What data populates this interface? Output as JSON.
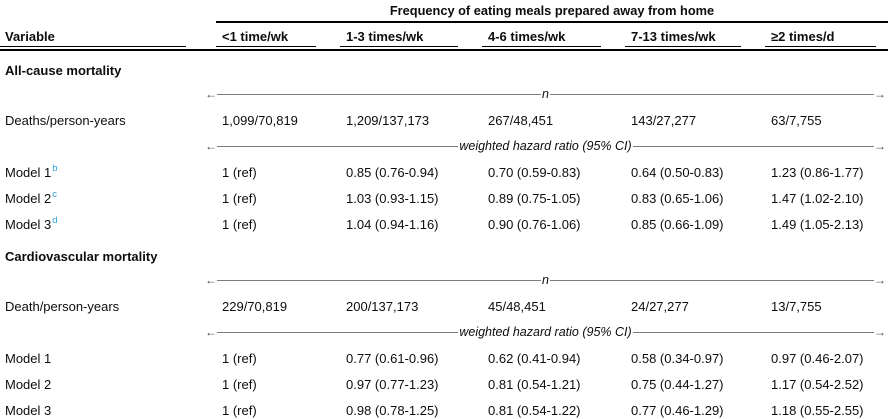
{
  "table": {
    "spanner": "Frequency of eating meals prepared away from home",
    "columns": [
      "Variable",
      "<1 time/wk",
      "1-3 times/wk",
      "4-6 times/wk",
      "7-13 times/wk",
      "≥2 times/d"
    ],
    "sections": [
      {
        "title": "All-cause mortality",
        "rows": [
          {
            "type": "arrow",
            "label": "n"
          },
          {
            "type": "data",
            "label": "Deaths/person-years",
            "sup": "",
            "values": [
              "1,099/70,819",
              "1,209/137,173",
              "267/48,451",
              "143/27,277",
              "63/7,755"
            ]
          },
          {
            "type": "arrow",
            "label": "weighted hazard ratio (95% CI)"
          },
          {
            "type": "data",
            "label": "Model 1",
            "sup": "b",
            "values": [
              "1 (ref)",
              "0.85 (0.76-0.94)",
              "0.70 (0.59-0.83)",
              "0.64 (0.50-0.83)",
              "1.23 (0.86-1.77)"
            ]
          },
          {
            "type": "data",
            "label": "Model 2",
            "sup": "c",
            "values": [
              "1 (ref)",
              "1.03 (0.93-1.15)",
              "0.89 (0.75-1.05)",
              "0.83 (0.65-1.06)",
              "1.47 (1.02-2.10)"
            ]
          },
          {
            "type": "data",
            "label": "Model 3",
            "sup": "d",
            "values": [
              "1 (ref)",
              "1.04 (0.94-1.16)",
              "0.90 (0.76-1.06)",
              "0.85 (0.66-1.09)",
              "1.49 (1.05-2.13)"
            ]
          }
        ]
      },
      {
        "title": "Cardiovascular mortality",
        "rows": [
          {
            "type": "arrow",
            "label": "n"
          },
          {
            "type": "data",
            "label": "Death/person-years",
            "sup": "",
            "values": [
              "229/70,819",
              "200/137,173",
              "45/48,451",
              "24/27,277",
              "13/7,755"
            ]
          },
          {
            "type": "arrow",
            "label": "weighted hazard ratio (95% CI)"
          },
          {
            "type": "data",
            "label": "Model 1",
            "sup": "",
            "values": [
              "1 (ref)",
              "0.77 (0.61-0.96)",
              "0.62 (0.41-0.94)",
              "0.58 (0.34-0.97)",
              "0.97 (0.46-2.07)"
            ]
          },
          {
            "type": "data",
            "label": "Model 2",
            "sup": "",
            "values": [
              "1 (ref)",
              "0.97 (0.77-1.23)",
              "0.81 (0.54-1.21)",
              "0.75 (0.44-1.27)",
              "1.17 (0.54-2.52)"
            ]
          },
          {
            "type": "data",
            "label": "Model 3",
            "sup": "",
            "values": [
              "1 (ref)",
              "0.98 (0.78-1.25)",
              "0.81 (0.54-1.22)",
              "0.77 (0.46-1.29)",
              "1.18 (0.55-2.55)"
            ]
          }
        ]
      }
    ],
    "arrows": {
      "left_glyph": "←",
      "right_glyph": "→"
    },
    "colors": {
      "text": "#0d0d0d",
      "rule": "#000000",
      "arrow_line": "#7d7d7d",
      "superscript": "#2f9fdc"
    }
  }
}
